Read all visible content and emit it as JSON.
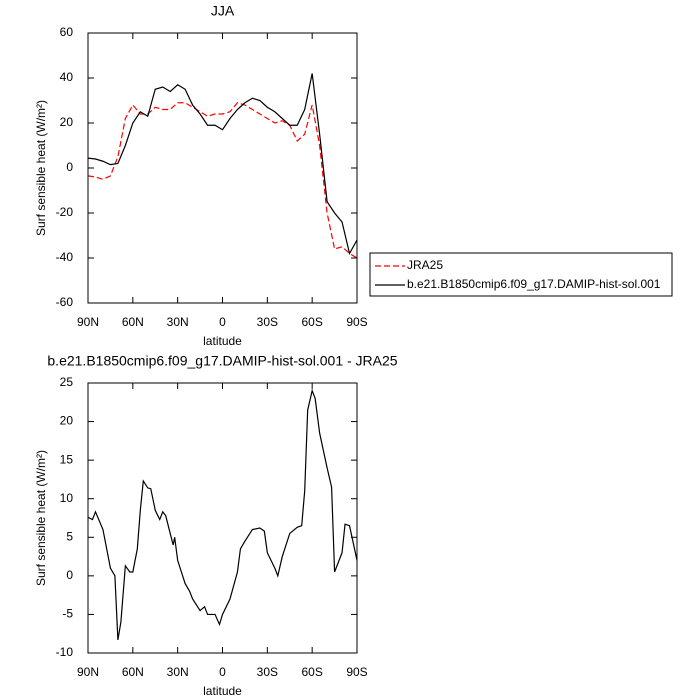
{
  "chart_data": [
    {
      "type": "line",
      "title": "JJA",
      "xlabel": "latitude",
      "ylabel": "Surf sensible heat (W/m²)",
      "x": [
        90,
        85,
        80,
        75,
        70,
        65,
        60,
        55,
        50,
        45,
        40,
        35,
        30,
        25,
        20,
        15,
        10,
        5,
        0,
        -5,
        -10,
        -15,
        -20,
        -25,
        -30,
        -35,
        -40,
        -45,
        -50,
        -55,
        -60,
        -65,
        -70,
        -75,
        -80,
        -85,
        -90
      ],
      "series": [
        {
          "name": "JRA25",
          "color": "#ff0000",
          "dashed": true,
          "values": [
            -3.5,
            -4,
            -5,
            -3.5,
            5,
            22,
            28,
            24,
            24,
            27,
            26,
            26,
            29,
            29,
            27,
            25,
            23,
            24,
            24,
            25,
            29,
            28,
            26,
            24,
            22,
            20,
            21,
            19,
            12,
            15,
            28,
            10,
            -20,
            -36,
            -35,
            -38,
            -40
          ]
        },
        {
          "name": "b.e21.B1850cmip6.f09_g17.DAMIP-hist-sol.001",
          "color": "#000000",
          "dashed": false,
          "values": [
            4.4,
            4,
            3,
            1.5,
            2,
            10,
            20,
            25,
            23,
            35,
            36,
            34,
            37,
            35,
            28,
            24,
            19,
            19,
            17,
            22,
            26,
            29,
            31,
            30,
            27,
            25,
            22,
            19,
            19,
            26,
            42,
            15,
            -15,
            -20,
            -24,
            -38,
            -32
          ]
        }
      ],
      "xlim": [
        90,
        -90
      ],
      "xticks": [
        {
          "value": 90,
          "label": "90N"
        },
        {
          "value": 60,
          "label": "60N"
        },
        {
          "value": 30,
          "label": "30N"
        },
        0,
        {
          "value": -30,
          "label": "30S"
        },
        {
          "value": -60,
          "label": "60S"
        },
        {
          "value": -90,
          "label": "90S"
        }
      ],
      "ylim": [
        -60,
        60
      ],
      "yticks": [
        -60,
        -40,
        -20,
        0,
        20,
        40,
        60
      ],
      "legend": "right"
    },
    {
      "type": "line",
      "title": "b.e21.B1850cmip6.f09_g17.DAMIP-hist-sol.001 - JRA25",
      "xlabel": "latitude",
      "ylabel": "Surf sensible heat (W/m²)",
      "x": [
        90,
        87,
        85,
        80,
        75,
        72,
        70,
        68,
        65,
        62,
        60,
        57,
        55,
        53,
        50,
        48,
        45,
        42,
        40,
        38,
        35,
        33,
        32,
        30,
        25,
        22,
        20,
        15,
        12,
        10,
        5,
        2,
        0,
        -5,
        -10,
        -12,
        -15,
        -20,
        -25,
        -28,
        -30,
        -35,
        -37,
        -40,
        -45,
        -50,
        -53,
        -55,
        -57,
        -60,
        -62,
        -65,
        -70,
        -73,
        -75,
        -80,
        -82,
        -85,
        -90
      ],
      "values": [
        7.6,
        7.3,
        8.3,
        6,
        1,
        0,
        -8.3,
        -6,
        1.3,
        0.5,
        0.5,
        3.5,
        8.5,
        12.3,
        11.4,
        11.3,
        8.5,
        7.3,
        8.3,
        7.8,
        5.5,
        4,
        5,
        2,
        -1,
        -2,
        -3,
        -4.5,
        -4,
        -5,
        -5,
        -6.3,
        -5,
        -3,
        0.5,
        3.5,
        4.5,
        6,
        6.2,
        5.8,
        3,
        1,
        0,
        2.5,
        5.5,
        6.3,
        6.5,
        11,
        21.5,
        24,
        23,
        18.5,
        14,
        11.5,
        0.5,
        3,
        6.7,
        6.5,
        2
      ],
      "color": "#000000",
      "xlim": [
        90,
        -90
      ],
      "xticks": [
        {
          "value": 90,
          "label": "90N"
        },
        {
          "value": 60,
          "label": "60N"
        },
        {
          "value": 30,
          "label": "30N"
        },
        0,
        {
          "value": -30,
          "label": "30S"
        },
        {
          "value": -60,
          "label": "60S"
        },
        {
          "value": -90,
          "label": "90S"
        }
      ],
      "ylim": [
        -10,
        25
      ],
      "yticks": [
        -10,
        -5,
        0,
        5,
        10,
        15,
        20,
        25
      ]
    }
  ]
}
